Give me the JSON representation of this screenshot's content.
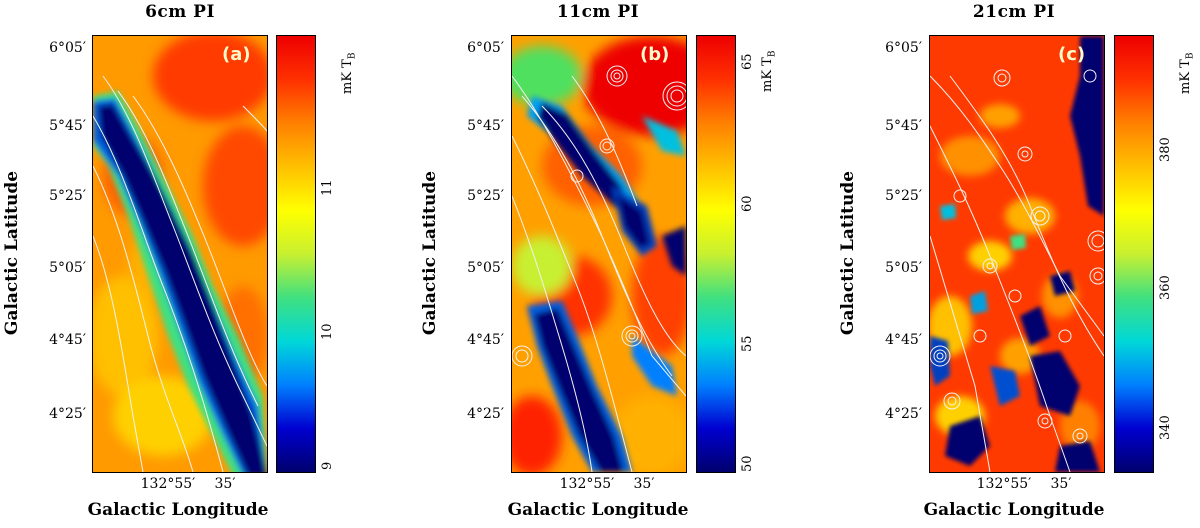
{
  "panels": [
    {
      "title": "6cm PI",
      "label": "(a)",
      "cbar_ticks": [
        "9",
        "10",
        "11"
      ],
      "cbar_unit": "mK T",
      "cbar_unit_sub": "B"
    },
    {
      "title": "11cm PI",
      "label": "(b)",
      "cbar_ticks": [
        "50",
        "55",
        "60",
        "65"
      ],
      "cbar_unit": "mK T",
      "cbar_unit_sub": "B"
    },
    {
      "title": "21cm PI",
      "label": "(c)",
      "cbar_ticks": [
        "340",
        "360",
        "380"
      ],
      "cbar_unit": "mK T",
      "cbar_unit_sub": "B"
    }
  ],
  "axes": {
    "ylabel": "Galactic Latitude",
    "xlabel": "Galactic Longitude",
    "yticks": [
      "6°05′",
      "5°45′",
      "5°25′",
      "5°05′",
      "4°45′",
      "4°25′"
    ],
    "xticks": [
      "132°55′",
      "35′"
    ]
  },
  "colormap": [
    "#00006e",
    "#0000d0",
    "#0080ff",
    "#00d8d8",
    "#40e080",
    "#c8f030",
    "#ffff00",
    "#ffc000",
    "#ff8000",
    "#ff3000",
    "#ee0000"
  ]
}
